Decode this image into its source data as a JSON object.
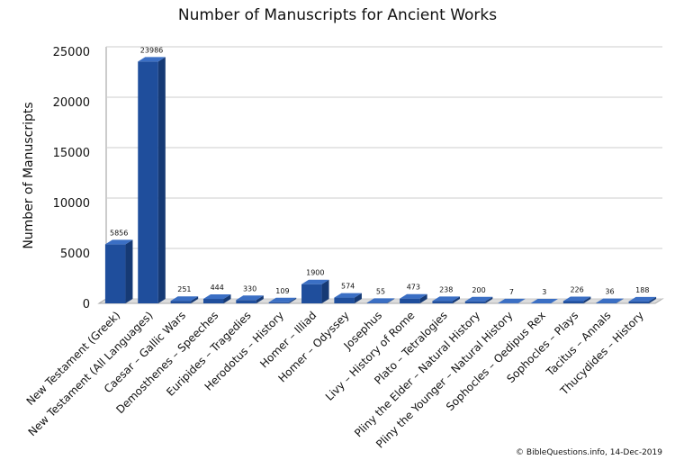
{
  "chart_data": {
    "type": "bar3d",
    "title": "Number of Manuscripts for Ancient Works",
    "y_label": "Number of Manuscripts",
    "credit": "© BibleQuestions.info, 14-Dec-2019",
    "categories": [
      "New Testament (Greek)",
      "New Testament (All Languages)",
      "Caesar – Gallic Wars",
      "Demosthenes – Speeches",
      "Euripides – Tragedies",
      "Herodotus – History",
      "Homer – Illiad",
      "Homer – Odyssey",
      "Josephus",
      "Livy – History of Rome",
      "Plato – Tetralogies",
      "Pliny the Elder – Natural History",
      "Pliny the Younger – Natural History",
      "Sophocles – Oedipus Rex",
      "Sophocles – Plays",
      "Tacitus – Annals",
      "Thucydides – History"
    ],
    "values": [
      5856,
      23986,
      251,
      444,
      330,
      109,
      1900,
      574,
      55,
      473,
      238,
      200,
      7,
      3,
      226,
      36,
      188
    ],
    "color": "#1f4e9c",
    "ylim": [
      0,
      25000
    ],
    "yticks": [
      0,
      5000,
      10000,
      15000,
      20000,
      25000
    ],
    "grid": true
  }
}
